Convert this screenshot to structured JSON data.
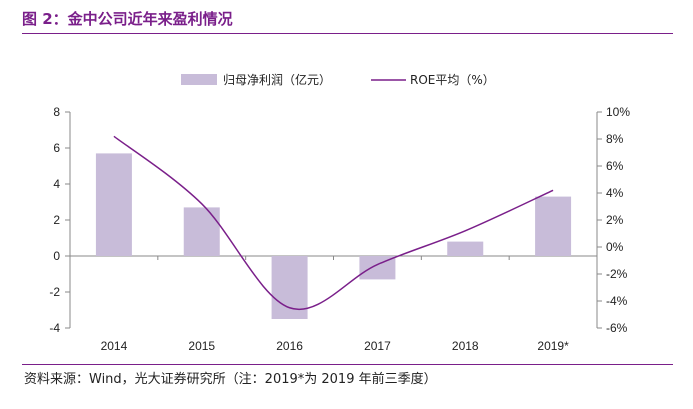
{
  "figure": {
    "title": "图 2：金中公司近年来盈利情况",
    "source": "资料来源：Wind，光大证券研究所（注：2019*为 2019 年前三季度）"
  },
  "colors": {
    "bar": "#c8bcd9",
    "line": "#7a1f8a",
    "title": "#7a1f8a",
    "axis": "#888888"
  },
  "chart_data": {
    "type": "bar",
    "categories": [
      "2014",
      "2015",
      "2016",
      "2017",
      "2018",
      "2019*"
    ],
    "series": [
      {
        "name": "归母净利润（亿元）",
        "type": "bar",
        "axis": "left",
        "values": [
          5.7,
          2.7,
          -3.5,
          -1.3,
          0.8,
          3.3
        ]
      },
      {
        "name": "ROE平均（%）",
        "type": "line",
        "axis": "right",
        "values": [
          8.2,
          3.2,
          -4.5,
          -1.3,
          1.2,
          4.2
        ]
      }
    ],
    "left_axis": {
      "ylim": [
        -4,
        8
      ],
      "ticks": [
        "8",
        "6",
        "4",
        "2",
        "0",
        "-2",
        "-4"
      ]
    },
    "right_axis": {
      "ylim": [
        -6,
        10
      ],
      "ticks": [
        "10%",
        "8%",
        "6%",
        "4%",
        "2%",
        "0%",
        "-2%",
        "-4%",
        "-6%"
      ]
    },
    "legend_position": "top-center",
    "grid": false
  }
}
